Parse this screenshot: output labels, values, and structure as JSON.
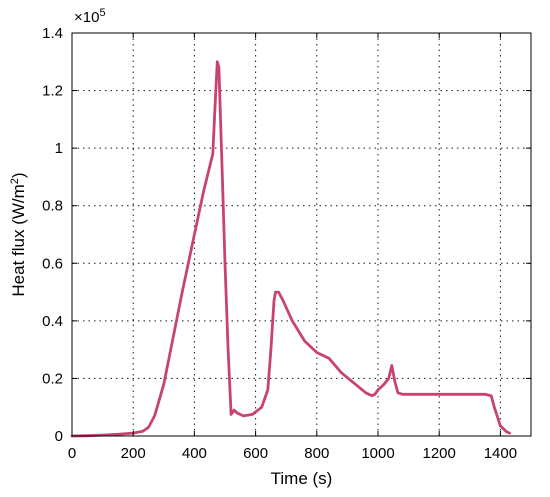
{
  "chart_data": {
    "type": "line",
    "xlabel": "Time (s)",
    "ylabel_main": "Heat flux (W/m",
    "ylabel_sup": "2",
    "ylabel_close": ")",
    "y_multiplier_base": "×10",
    "y_multiplier_exp": "5",
    "xlim": [
      0,
      1500
    ],
    "ylim": [
      0,
      1.4
    ],
    "x_ticks": [
      0,
      200,
      400,
      600,
      800,
      1000,
      1200,
      1400
    ],
    "x_tick_labels": [
      "0",
      "200",
      "400",
      "600",
      "800",
      "1000",
      "1200",
      "1400"
    ],
    "y_ticks": [
      0,
      0.2,
      0.4,
      0.6,
      0.8,
      1,
      1.2,
      1.4
    ],
    "y_tick_labels": [
      "0",
      "0.2",
      "0.4",
      "0.6",
      "0.8",
      "1",
      "1.2",
      "1.4"
    ],
    "grid": true,
    "color": "#c8446e",
    "series": [
      {
        "x": [
          0,
          50,
          100,
          150,
          200,
          230,
          250,
          270,
          300,
          330,
          360,
          400,
          430,
          460,
          470,
          475,
          480,
          490,
          500,
          510,
          520,
          530,
          540,
          560,
          590,
          620,
          640,
          650,
          660,
          665,
          675,
          690,
          720,
          760,
          800,
          840,
          880,
          920,
          960,
          980,
          990,
          1000,
          1020,
          1035,
          1045,
          1055,
          1065,
          1080,
          1150,
          1250,
          1350,
          1370,
          1380,
          1400,
          1420,
          1430
        ],
        "y": [
          0,
          0.001,
          0.003,
          0.006,
          0.01,
          0.016,
          0.03,
          0.07,
          0.18,
          0.34,
          0.5,
          0.7,
          0.85,
          0.98,
          1.2,
          1.3,
          1.28,
          0.95,
          0.6,
          0.3,
          0.075,
          0.09,
          0.08,
          0.07,
          0.075,
          0.1,
          0.16,
          0.3,
          0.47,
          0.5,
          0.5,
          0.47,
          0.4,
          0.33,
          0.29,
          0.27,
          0.22,
          0.185,
          0.15,
          0.14,
          0.145,
          0.16,
          0.18,
          0.2,
          0.245,
          0.19,
          0.15,
          0.145,
          0.145,
          0.145,
          0.145,
          0.14,
          0.1,
          0.035,
          0.015,
          0.01
        ]
      }
    ]
  }
}
